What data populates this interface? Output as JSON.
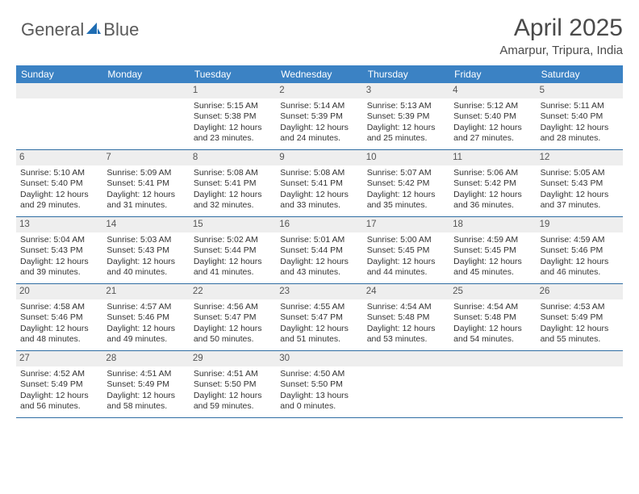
{
  "brand": {
    "text1": "General",
    "text2": "Blue"
  },
  "title": "April 2025",
  "location": "Amarpur, Tripura, India",
  "colors": {
    "header_bg": "#3b82c4",
    "header_text": "#ffffff",
    "row_sep": "#2f6da3",
    "daynum_bg": "#eeeeee",
    "logo_blue": "#1f6db3"
  },
  "weekdays": [
    "Sunday",
    "Monday",
    "Tuesday",
    "Wednesday",
    "Thursday",
    "Friday",
    "Saturday"
  ],
  "weeks": [
    [
      null,
      null,
      {
        "n": "1",
        "sr": "Sunrise: 5:15 AM",
        "ss": "Sunset: 5:38 PM",
        "dl": "Daylight: 12 hours and 23 minutes."
      },
      {
        "n": "2",
        "sr": "Sunrise: 5:14 AM",
        "ss": "Sunset: 5:39 PM",
        "dl": "Daylight: 12 hours and 24 minutes."
      },
      {
        "n": "3",
        "sr": "Sunrise: 5:13 AM",
        "ss": "Sunset: 5:39 PM",
        "dl": "Daylight: 12 hours and 25 minutes."
      },
      {
        "n": "4",
        "sr": "Sunrise: 5:12 AM",
        "ss": "Sunset: 5:40 PM",
        "dl": "Daylight: 12 hours and 27 minutes."
      },
      {
        "n": "5",
        "sr": "Sunrise: 5:11 AM",
        "ss": "Sunset: 5:40 PM",
        "dl": "Daylight: 12 hours and 28 minutes."
      }
    ],
    [
      {
        "n": "6",
        "sr": "Sunrise: 5:10 AM",
        "ss": "Sunset: 5:40 PM",
        "dl": "Daylight: 12 hours and 29 minutes."
      },
      {
        "n": "7",
        "sr": "Sunrise: 5:09 AM",
        "ss": "Sunset: 5:41 PM",
        "dl": "Daylight: 12 hours and 31 minutes."
      },
      {
        "n": "8",
        "sr": "Sunrise: 5:08 AM",
        "ss": "Sunset: 5:41 PM",
        "dl": "Daylight: 12 hours and 32 minutes."
      },
      {
        "n": "9",
        "sr": "Sunrise: 5:08 AM",
        "ss": "Sunset: 5:41 PM",
        "dl": "Daylight: 12 hours and 33 minutes."
      },
      {
        "n": "10",
        "sr": "Sunrise: 5:07 AM",
        "ss": "Sunset: 5:42 PM",
        "dl": "Daylight: 12 hours and 35 minutes."
      },
      {
        "n": "11",
        "sr": "Sunrise: 5:06 AM",
        "ss": "Sunset: 5:42 PM",
        "dl": "Daylight: 12 hours and 36 minutes."
      },
      {
        "n": "12",
        "sr": "Sunrise: 5:05 AM",
        "ss": "Sunset: 5:43 PM",
        "dl": "Daylight: 12 hours and 37 minutes."
      }
    ],
    [
      {
        "n": "13",
        "sr": "Sunrise: 5:04 AM",
        "ss": "Sunset: 5:43 PM",
        "dl": "Daylight: 12 hours and 39 minutes."
      },
      {
        "n": "14",
        "sr": "Sunrise: 5:03 AM",
        "ss": "Sunset: 5:43 PM",
        "dl": "Daylight: 12 hours and 40 minutes."
      },
      {
        "n": "15",
        "sr": "Sunrise: 5:02 AM",
        "ss": "Sunset: 5:44 PM",
        "dl": "Daylight: 12 hours and 41 minutes."
      },
      {
        "n": "16",
        "sr": "Sunrise: 5:01 AM",
        "ss": "Sunset: 5:44 PM",
        "dl": "Daylight: 12 hours and 43 minutes."
      },
      {
        "n": "17",
        "sr": "Sunrise: 5:00 AM",
        "ss": "Sunset: 5:45 PM",
        "dl": "Daylight: 12 hours and 44 minutes."
      },
      {
        "n": "18",
        "sr": "Sunrise: 4:59 AM",
        "ss": "Sunset: 5:45 PM",
        "dl": "Daylight: 12 hours and 45 minutes."
      },
      {
        "n": "19",
        "sr": "Sunrise: 4:59 AM",
        "ss": "Sunset: 5:46 PM",
        "dl": "Daylight: 12 hours and 46 minutes."
      }
    ],
    [
      {
        "n": "20",
        "sr": "Sunrise: 4:58 AM",
        "ss": "Sunset: 5:46 PM",
        "dl": "Daylight: 12 hours and 48 minutes."
      },
      {
        "n": "21",
        "sr": "Sunrise: 4:57 AM",
        "ss": "Sunset: 5:46 PM",
        "dl": "Daylight: 12 hours and 49 minutes."
      },
      {
        "n": "22",
        "sr": "Sunrise: 4:56 AM",
        "ss": "Sunset: 5:47 PM",
        "dl": "Daylight: 12 hours and 50 minutes."
      },
      {
        "n": "23",
        "sr": "Sunrise: 4:55 AM",
        "ss": "Sunset: 5:47 PM",
        "dl": "Daylight: 12 hours and 51 minutes."
      },
      {
        "n": "24",
        "sr": "Sunrise: 4:54 AM",
        "ss": "Sunset: 5:48 PM",
        "dl": "Daylight: 12 hours and 53 minutes."
      },
      {
        "n": "25",
        "sr": "Sunrise: 4:54 AM",
        "ss": "Sunset: 5:48 PM",
        "dl": "Daylight: 12 hours and 54 minutes."
      },
      {
        "n": "26",
        "sr": "Sunrise: 4:53 AM",
        "ss": "Sunset: 5:49 PM",
        "dl": "Daylight: 12 hours and 55 minutes."
      }
    ],
    [
      {
        "n": "27",
        "sr": "Sunrise: 4:52 AM",
        "ss": "Sunset: 5:49 PM",
        "dl": "Daylight: 12 hours and 56 minutes."
      },
      {
        "n": "28",
        "sr": "Sunrise: 4:51 AM",
        "ss": "Sunset: 5:49 PM",
        "dl": "Daylight: 12 hours and 58 minutes."
      },
      {
        "n": "29",
        "sr": "Sunrise: 4:51 AM",
        "ss": "Sunset: 5:50 PM",
        "dl": "Daylight: 12 hours and 59 minutes."
      },
      {
        "n": "30",
        "sr": "Sunrise: 4:50 AM",
        "ss": "Sunset: 5:50 PM",
        "dl": "Daylight: 13 hours and 0 minutes."
      },
      null,
      null,
      null
    ]
  ]
}
